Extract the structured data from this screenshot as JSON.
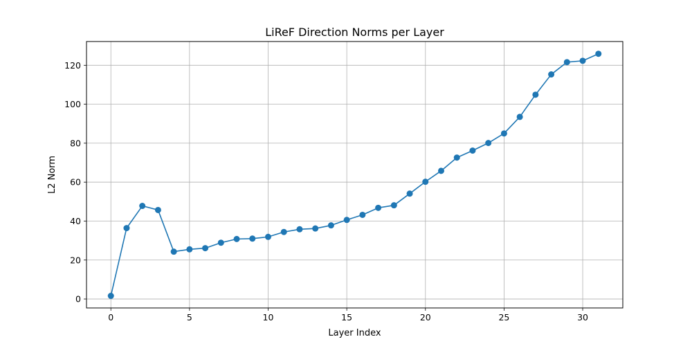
{
  "chart_data": {
    "type": "line",
    "title": "LiReF Direction Norms per Layer",
    "xlabel": "Layer Index",
    "ylabel": "L2 Norm",
    "x": [
      0,
      1,
      2,
      3,
      4,
      5,
      6,
      7,
      8,
      9,
      10,
      11,
      12,
      13,
      14,
      15,
      16,
      17,
      18,
      19,
      20,
      21,
      22,
      23,
      24,
      25,
      26,
      27,
      28,
      29,
      30,
      31
    ],
    "series": [
      {
        "values": [
          1.6,
          36.4,
          47.8,
          45.7,
          24.3,
          25.5,
          26.1,
          28.9,
          30.8,
          31.0,
          31.9,
          34.4,
          35.8,
          36.2,
          37.8,
          40.6,
          43.2,
          46.8,
          48.1,
          54.1,
          60.2,
          65.8,
          72.6,
          76.2,
          80.1,
          85.0,
          93.5,
          104.9,
          115.3,
          121.6,
          122.3,
          125.9
        ],
        "color": "#1f77b4",
        "marker": "circle"
      }
    ],
    "xlim": [
      -1.55,
      32.55
    ],
    "ylim": [
      -4.6,
      132.2
    ],
    "xticks": [
      0,
      5,
      10,
      15,
      20,
      25,
      30
    ],
    "yticks": [
      0,
      20,
      40,
      60,
      80,
      100,
      120
    ],
    "grid": true,
    "legend": "none"
  }
}
